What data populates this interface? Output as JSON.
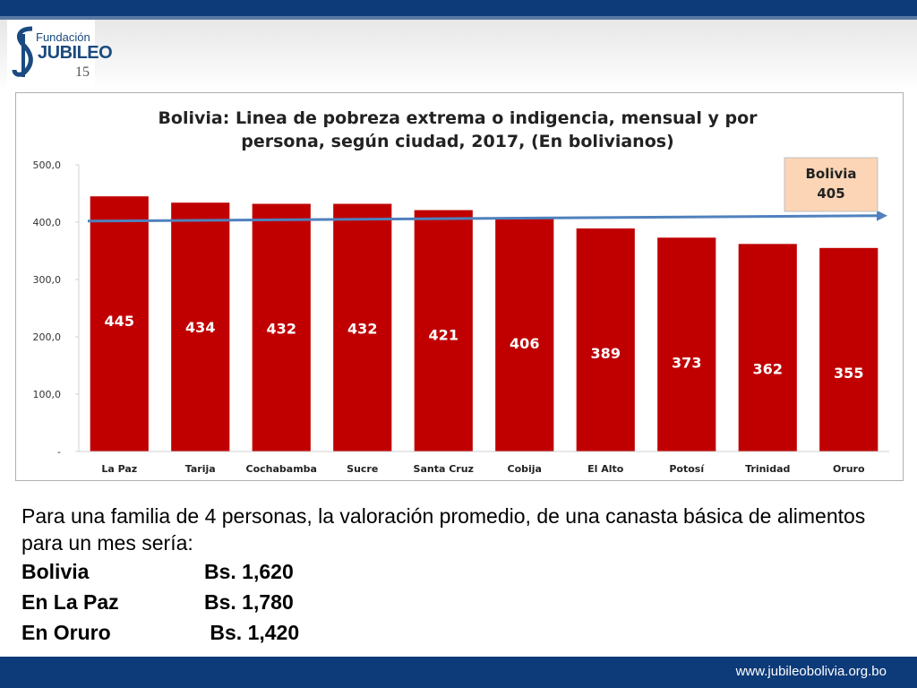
{
  "logo": {
    "top_text": "Fundación",
    "main_text": "JUBILEO",
    "number": "15"
  },
  "chart_data": {
    "type": "bar",
    "title_line1": "Bolivia: Linea de pobreza extrema o indigencia, mensual y por",
    "title_line2": "persona, según ciudad, 2017, (En bolivianos)",
    "categories": [
      "La Paz",
      "Tarija",
      "Cochabamba",
      "Sucre",
      "Santa Cruz",
      "Cobija",
      "El Alto",
      "Potosí",
      "Trinidad",
      "Oruro"
    ],
    "values": [
      445,
      434,
      432,
      432,
      421,
      406,
      389,
      373,
      362,
      355
    ],
    "ylim": [
      0,
      500
    ],
    "yticks": [
      {
        "value": 0,
        "label": "-"
      },
      {
        "value": 100,
        "label": "100,0"
      },
      {
        "value": 200,
        "label": "200,0"
      },
      {
        "value": 300,
        "label": "300,0"
      },
      {
        "value": 400,
        "label": "400,0"
      },
      {
        "value": 500,
        "label": "500,0"
      }
    ],
    "reference": {
      "value": 405,
      "label_line1": "Bolivia",
      "label_line2": "405"
    },
    "bar_color": "#c00000",
    "arrow_color": "#4f81bd",
    "callout_bg": "#fbd5b5",
    "grid": false
  },
  "body": {
    "intro": "Para una familia de 4 personas, la valoración promedio, de una canasta básica de alimentos para un mes sería:",
    "rows": [
      {
        "label": "Bolivia",
        "value": "Bs. 1,620"
      },
      {
        "label": "En La Paz",
        "value": "Bs. 1,780"
      },
      {
        "label": "En Oruro",
        "value": " Bs. 1,420"
      }
    ]
  },
  "footer": {
    "url": "www.jubileobolivia.org.bo"
  }
}
